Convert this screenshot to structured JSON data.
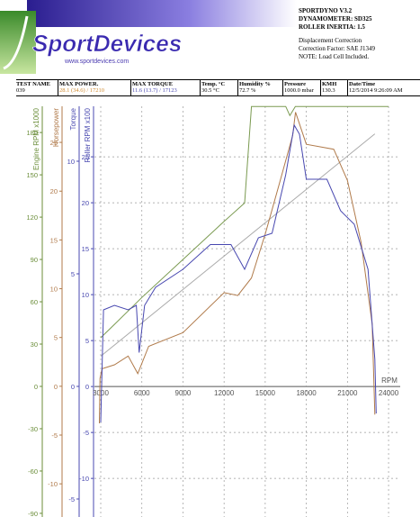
{
  "header": {
    "logo": "SportDevices",
    "url": "www.sportdevices.com",
    "info": [
      "SPORTDYNO V3.2",
      "DYNAMOMETER: SD325",
      "ROLLER INERTIA: 1.5",
      "Displacement Correction",
      "Correction Factor: SAE J1349",
      "NOTE: Load Cell Included."
    ]
  },
  "table": {
    "columns": [
      "TEST NAME",
      "MAX POWER.",
      "MAX TORQUE",
      "Temp. °C",
      "Humidity %",
      "Pressure",
      "KMH",
      "Date/Time"
    ],
    "row": [
      "039",
      "28.1 (34.6) / 17210",
      "11.6 (13.7) / 17123",
      "30.5 °C",
      "72.7 %",
      "1000.0 mbar",
      "130.3",
      "12/5/2014 9:26:09 AM"
    ]
  },
  "chart_data": {
    "type": "line",
    "xlabel": "RPM",
    "xlim": [
      2540,
      24850
    ],
    "xticks": [
      3000,
      6000,
      9000,
      12000,
      15000,
      18000,
      21000,
      24000
    ],
    "grid": true,
    "axes": [
      {
        "label": "Engine RPM x1000",
        "color": "#6b8e3a",
        "lim": [
          -92.6,
          198.6
        ],
        "ticks": [
          -90,
          -60,
          -30,
          0,
          30,
          60,
          90,
          120,
          150,
          180
        ]
      },
      {
        "label": "Horsepower",
        "color": "#b07a4a",
        "lim": [
          -13.4,
          28.7
        ],
        "ticks": [
          -10,
          -5,
          0,
          5,
          10,
          15,
          20,
          25
        ]
      },
      {
        "label": "Torque",
        "color": "#4848b0",
        "lim": [
          -5.8,
          12.44
        ],
        "ticks": [
          -5,
          0,
          5,
          10
        ]
      },
      {
        "label": "Roller RPM x100",
        "color": "#4848b0",
        "lim": [
          -14.2,
          30.5
        ],
        "ticks": [
          -10,
          -5,
          0,
          5,
          10,
          15,
          20,
          25
        ]
      }
    ],
    "series": [
      {
        "color": "#7a9a50",
        "axis": 0,
        "x": [
          3000,
          4000,
          6000,
          9000,
          12000,
          13500,
          14000,
          16500,
          16800,
          17200,
          24000
        ],
        "values": [
          34.5,
          44,
          63,
          90,
          117,
          130,
          198.5,
          198.5,
          192,
          198.5,
          198.5
        ]
      },
      {
        "color": "#aaaaaa",
        "axis": 3,
        "x": [
          3000,
          23000
        ],
        "values": [
          3.3,
          27.5
        ]
      },
      {
        "color": "#b07a4a",
        "axis": 1,
        "x": [
          2900,
          2950,
          3100,
          4000,
          5000,
          5700,
          6500,
          9000,
          12000,
          13000,
          14000,
          15000,
          16000,
          17000,
          17210,
          18000,
          20000,
          21000,
          22000,
          22800,
          23000
        ],
        "values": [
          -3.8,
          0.8,
          1.8,
          2.2,
          3.1,
          1.3,
          4.1,
          5.5,
          9.6,
          9.3,
          11.1,
          15.6,
          20.6,
          25.7,
          28.1,
          24.8,
          24.3,
          21.1,
          14.7,
          6.4,
          -2.9
        ]
      },
      {
        "color": "#4848b0",
        "axis": 2,
        "x": [
          3000,
          3200,
          4000,
          5000,
          5600,
          5800,
          6200,
          7000,
          9000,
          11000,
          12500,
          13500,
          14500,
          15500,
          16500,
          17123,
          17500,
          18000,
          19500,
          20500,
          21500,
          22500,
          23000,
          23100
        ],
        "values": [
          -1.6,
          3.4,
          3.6,
          3.4,
          3.6,
          1.5,
          3.6,
          4.4,
          5.2,
          6.3,
          6.3,
          5.2,
          6.6,
          6.8,
          9.4,
          11.6,
          11.2,
          9.2,
          9.2,
          7.8,
          7.2,
          5.2,
          1.2,
          -1.2
        ]
      }
    ]
  }
}
